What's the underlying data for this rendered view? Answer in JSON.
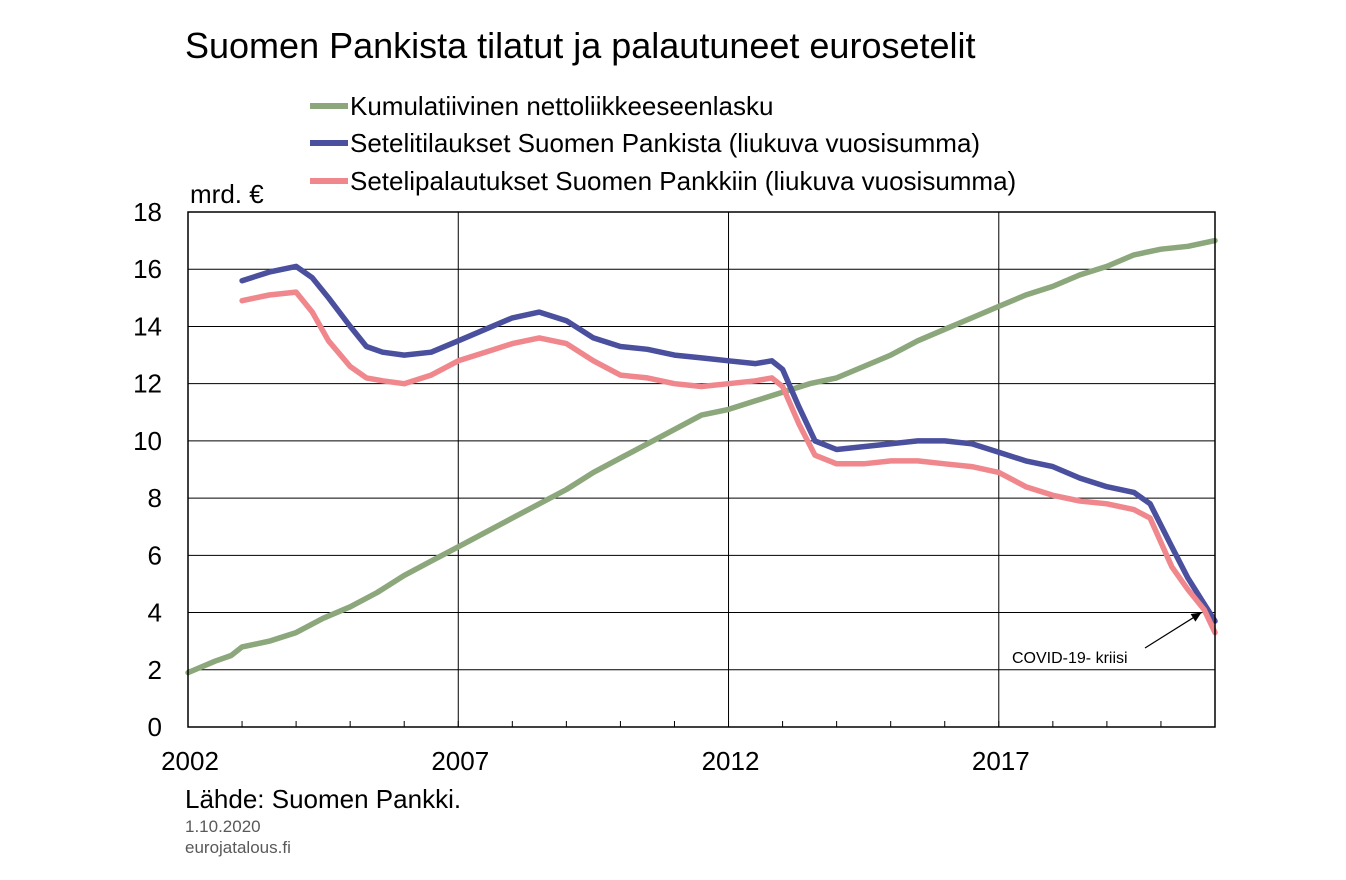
{
  "chart_data": {
    "type": "line",
    "title": "Suomen Pankista tilatut ja palautuneet eurosetelit",
    "ylabel": "mrd. €",
    "ylim": [
      0,
      18
    ],
    "yticks": [
      0,
      2,
      4,
      6,
      8,
      10,
      12,
      14,
      16,
      18
    ],
    "xlim": [
      2002,
      2021
    ],
    "xtick_labels": [
      "2002",
      "2007",
      "2012",
      "2017"
    ],
    "x_tick_marks": [
      2002,
      2003,
      2004,
      2005,
      2006,
      2007,
      2008,
      2009,
      2010,
      2011,
      2012,
      2013,
      2014,
      2015,
      2016,
      2017,
      2018,
      2019,
      2020,
      2021
    ],
    "grid": true,
    "legend_position": "top",
    "series": [
      {
        "name": "Kumulatiivinen nettoliikkeeseenlasku",
        "color": "#8BA77B",
        "x": [
          2002.0,
          2002.5,
          2002.8,
          2003.0,
          2003.5,
          2004.0,
          2004.5,
          2005.0,
          2005.5,
          2006.0,
          2006.5,
          2007.0,
          2007.5,
          2008.0,
          2008.5,
          2009.0,
          2009.5,
          2010.0,
          2010.5,
          2011.0,
          2011.5,
          2012.0,
          2012.5,
          2013.0,
          2013.5,
          2014.0,
          2014.5,
          2015.0,
          2015.5,
          2016.0,
          2016.5,
          2017.0,
          2017.5,
          2018.0,
          2018.5,
          2019.0,
          2019.5,
          2020.0,
          2020.5,
          2021.0
        ],
        "y": [
          1.9,
          2.3,
          2.5,
          2.8,
          3.0,
          3.3,
          3.8,
          4.2,
          4.7,
          5.3,
          5.8,
          6.3,
          6.8,
          7.3,
          7.8,
          8.3,
          8.9,
          9.4,
          9.9,
          10.4,
          10.9,
          11.1,
          11.4,
          11.7,
          12.0,
          12.2,
          12.6,
          13.0,
          13.5,
          13.9,
          14.3,
          14.7,
          15.1,
          15.4,
          15.8,
          16.1,
          16.5,
          16.7,
          16.8,
          17.0
        ]
      },
      {
        "name": "Setelitilaukset Suomen Pankista (liukuva vuosisumma)",
        "color": "#4A4F9E",
        "x": [
          2003.0,
          2003.5,
          2004.0,
          2004.3,
          2004.6,
          2005.0,
          2005.3,
          2005.6,
          2006.0,
          2006.5,
          2007.0,
          2007.5,
          2008.0,
          2008.5,
          2009.0,
          2009.5,
          2010.0,
          2010.5,
          2011.0,
          2011.5,
          2012.0,
          2012.5,
          2012.8,
          2013.0,
          2013.3,
          2013.6,
          2014.0,
          2014.5,
          2015.0,
          2015.5,
          2016.0,
          2016.5,
          2017.0,
          2017.5,
          2018.0,
          2018.5,
          2019.0,
          2019.5,
          2019.8,
          2020.2,
          2020.5,
          2020.8,
          2021.0
        ],
        "y": [
          15.6,
          15.9,
          16.1,
          15.7,
          15.0,
          14.0,
          13.3,
          13.1,
          13.0,
          13.1,
          13.5,
          13.9,
          14.3,
          14.5,
          14.2,
          13.6,
          13.3,
          13.2,
          13.0,
          12.9,
          12.8,
          12.7,
          12.8,
          12.5,
          11.2,
          10.0,
          9.7,
          9.8,
          9.9,
          10.0,
          10.0,
          9.9,
          9.6,
          9.3,
          9.1,
          8.7,
          8.4,
          8.2,
          7.8,
          6.3,
          5.2,
          4.3,
          3.7
        ]
      },
      {
        "name": "Setelipalautukset Suomen Pankkiin (liukuva vuosisumma)",
        "color": "#F0878D",
        "x": [
          2003.0,
          2003.5,
          2004.0,
          2004.3,
          2004.6,
          2005.0,
          2005.3,
          2005.6,
          2006.0,
          2006.5,
          2007.0,
          2007.5,
          2008.0,
          2008.5,
          2009.0,
          2009.5,
          2010.0,
          2010.5,
          2011.0,
          2011.5,
          2012.0,
          2012.5,
          2012.8,
          2013.0,
          2013.3,
          2013.6,
          2014.0,
          2014.5,
          2015.0,
          2015.5,
          2016.0,
          2016.5,
          2017.0,
          2017.5,
          2018.0,
          2018.5,
          2019.0,
          2019.5,
          2019.8,
          2020.2,
          2020.5,
          2020.8,
          2021.0
        ],
        "y": [
          14.9,
          15.1,
          15.2,
          14.5,
          13.5,
          12.6,
          12.2,
          12.1,
          12.0,
          12.3,
          12.8,
          13.1,
          13.4,
          13.6,
          13.4,
          12.8,
          12.3,
          12.2,
          12.0,
          11.9,
          12.0,
          12.1,
          12.2,
          11.9,
          10.6,
          9.5,
          9.2,
          9.2,
          9.3,
          9.3,
          9.2,
          9.1,
          8.9,
          8.4,
          8.1,
          7.9,
          7.8,
          7.6,
          7.3,
          5.6,
          4.8,
          4.1,
          3.3
        ]
      }
    ],
    "annotations": [
      {
        "text": "COVID-19-  kriisi",
        "target_x": 2020.75,
        "target_y": 4.0
      }
    ]
  },
  "source": {
    "text": "Lähde: Suomen Pankki.",
    "date": "1.10.2020",
    "site": "eurojatalous.fi"
  }
}
